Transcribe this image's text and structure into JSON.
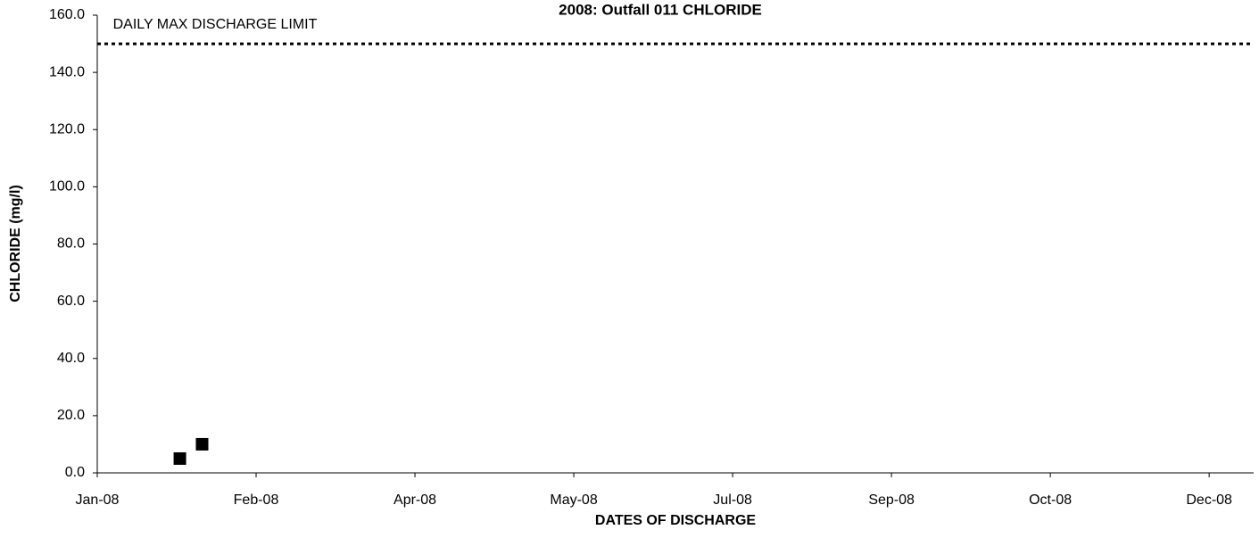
{
  "chart_data": {
    "type": "scatter",
    "title": "2008: Outfall 011 CHLORIDE",
    "xlabel": "DATES OF DISCHARGE",
    "ylabel": "CHLORIDE (mg/l)",
    "series": [
      {
        "name": "CHLORIDE",
        "color": "#000000",
        "x": [
          39474,
          39481
        ],
        "values": [
          5,
          10
        ]
      }
    ],
    "limit": 150,
    "annotation": "DAILY MAX DISCHARGE LIMIT",
    "xlim": [
      39448,
      39812
    ],
    "xticks": [
      {
        "value": 39448,
        "label": "Jan-08"
      },
      {
        "value": 39498,
        "label": "Feb-08"
      },
      {
        "value": 39548,
        "label": "Apr-08"
      },
      {
        "value": 39598,
        "label": "May-08"
      },
      {
        "value": 39648,
        "label": "Jul-08"
      },
      {
        "value": 39698,
        "label": "Sep-08"
      },
      {
        "value": 39748,
        "label": "Oct-08"
      },
      {
        "value": 39798,
        "label": "Dec-08"
      }
    ],
    "ylim": [
      0,
      160
    ],
    "yticks": [
      {
        "value": 0,
        "label": "0.0"
      },
      {
        "value": 20,
        "label": "20.0"
      },
      {
        "value": 40,
        "label": "40.0"
      },
      {
        "value": 60,
        "label": "60.0"
      },
      {
        "value": 80,
        "label": "80.0"
      },
      {
        "value": 100,
        "label": "100.0"
      },
      {
        "value": 120,
        "label": "120.0"
      },
      {
        "value": 140,
        "label": "140.0"
      },
      {
        "value": 160,
        "label": "160.0"
      }
    ]
  }
}
